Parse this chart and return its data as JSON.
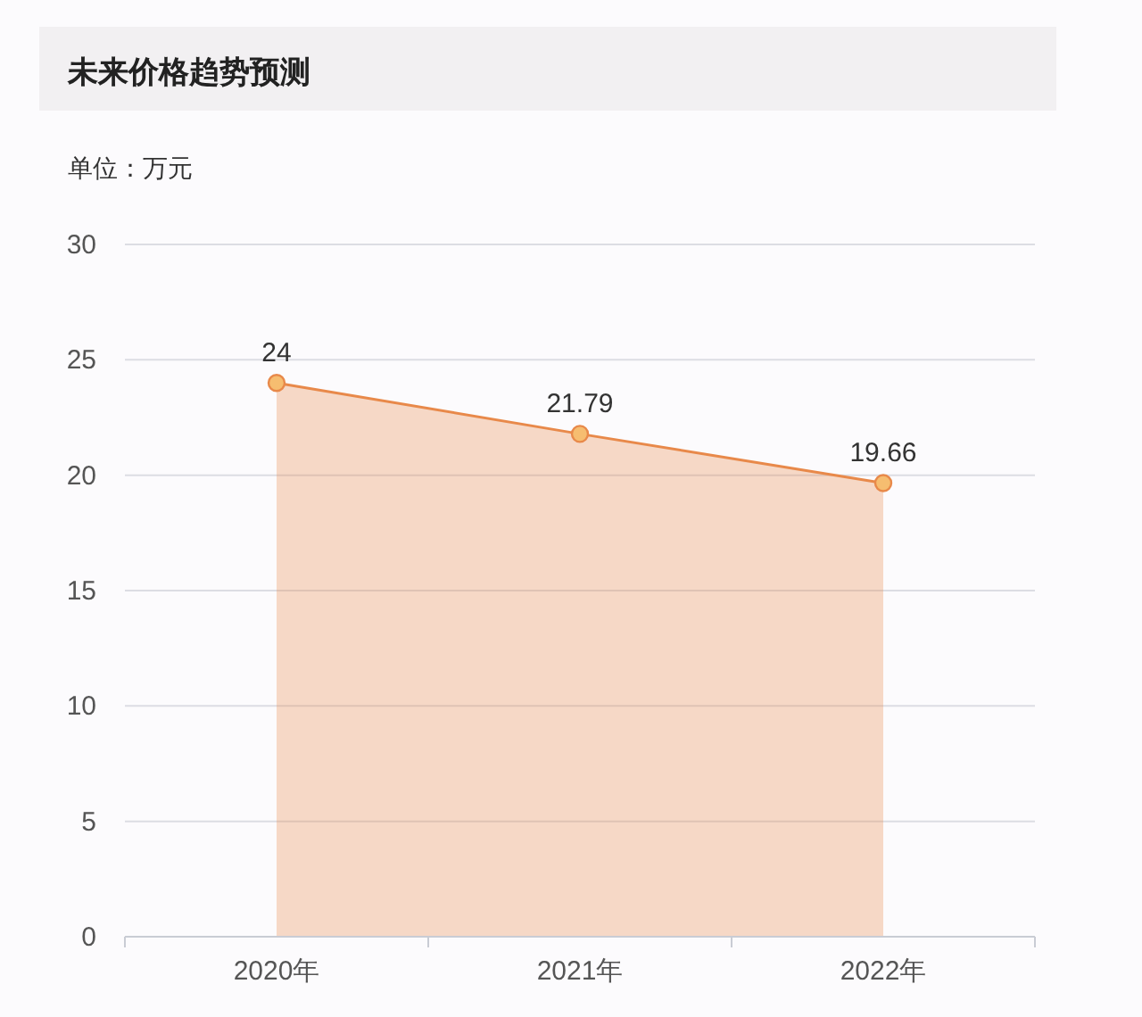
{
  "chart_data": {
    "type": "area",
    "title": "未来价格趋势预测",
    "ylabel": "单位：万元",
    "categories": [
      "2020年",
      "2021年",
      "2022年"
    ],
    "series": [
      {
        "color": "#e8894a",
        "values": [
          24,
          21.79,
          19.66
        ]
      }
    ],
    "ylim": [
      0,
      30
    ],
    "yticks": [
      0,
      5,
      10,
      15,
      20,
      25,
      30
    ],
    "grid": "y",
    "marker": "circle",
    "line_style": "solid",
    "data_labels": true
  }
}
